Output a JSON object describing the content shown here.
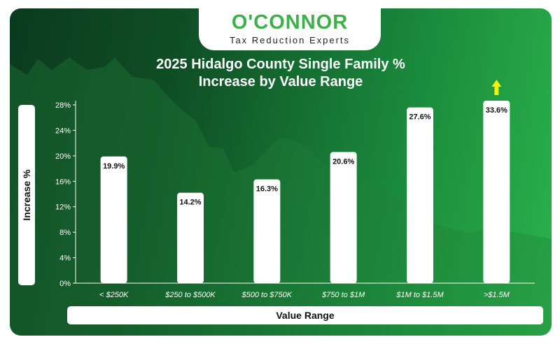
{
  "brand": {
    "name": "O'CONNOR",
    "tagline": "Tax Reduction Experts"
  },
  "colors": {
    "accent": "#3db049",
    "arrow": "#f2f20a",
    "bar": "#ffffff"
  },
  "chart_data": {
    "type": "bar",
    "title_line1": "2025 Hidalgo County Single Family %",
    "title_line2": "Increase by Value Range",
    "xlabel": "Value Range",
    "ylabel": "Increase %",
    "categories": [
      "< $250K",
      "$250 to $500K",
      "$500 to $750K",
      "$750 to $1M",
      "$1M to $1.5M",
      ">$1.5M"
    ],
    "values": [
      19.9,
      14.2,
      16.3,
      20.6,
      27.6,
      33.6
    ],
    "value_labels": [
      "19.9%",
      "14.2%",
      "16.3%",
      "20.6%",
      "27.6%",
      "33.6%"
    ],
    "yticks": [
      "0%",
      "4%",
      "8%",
      "12%",
      "16%",
      "20%",
      "24%",
      "28%"
    ],
    "ylim": [
      0,
      28
    ],
    "ytick_step": 4,
    "overflow_marker": "arrow-up",
    "grid": false,
    "legend": "none"
  }
}
